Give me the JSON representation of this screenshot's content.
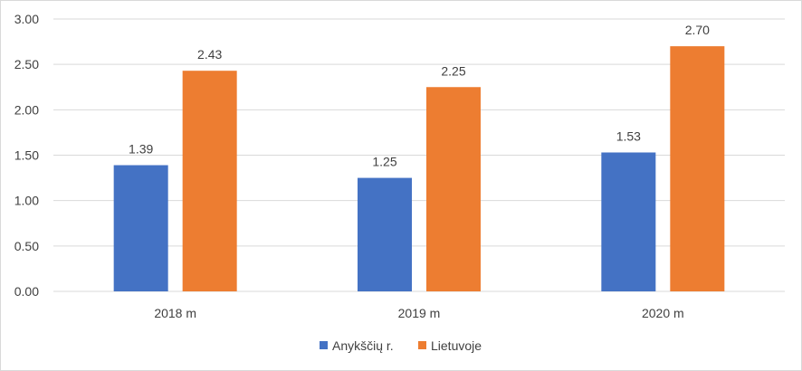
{
  "chart_data": {
    "type": "bar",
    "categories": [
      "2018 m",
      "2019 m",
      "2020 m"
    ],
    "series": [
      {
        "name": "Anykščių r.",
        "values": [
          1.39,
          1.25,
          1.53
        ],
        "color": "#4472C4"
      },
      {
        "name": "Lietuvoje",
        "values": [
          2.43,
          2.25,
          2.7
        ],
        "color": "#ED7D31"
      }
    ],
    "data_labels": [
      [
        "1.39",
        "1.25",
        "1.53"
      ],
      [
        "2.43",
        "2.25",
        "2.70"
      ]
    ],
    "ylim": [
      0,
      3
    ],
    "yticks": [
      "0.00",
      "0.50",
      "1.00",
      "1.50",
      "2.00",
      "2.50",
      "3.00"
    ],
    "grid": true,
    "legend_position": "bottom",
    "gridline_color": "#d9d9d9"
  }
}
